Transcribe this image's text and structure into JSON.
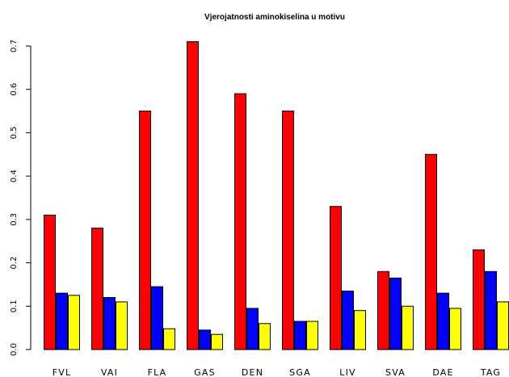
{
  "chart_data": {
    "type": "bar",
    "title": "Vjerojatnosti aminokiselina u motivu",
    "xlabel": "",
    "ylabel": "",
    "ylim": [
      0,
      0.7
    ],
    "yticks": [
      "0.0",
      "0.1",
      "0.2",
      "0.3",
      "0.4",
      "0.5",
      "0.6",
      "0.7"
    ],
    "grid": false,
    "categories": [
      "FVL",
      "VAI",
      "FLA",
      "GAS",
      "DEN",
      "SGA",
      "LIV",
      "SVA",
      "DAE",
      "TAG"
    ],
    "series": [
      {
        "color": "#ff0000",
        "values": [
          0.31,
          0.28,
          0.55,
          0.71,
          0.59,
          0.55,
          0.33,
          0.18,
          0.45,
          0.23
        ]
      },
      {
        "color": "#0000ff",
        "values": [
          0.13,
          0.12,
          0.145,
          0.045,
          0.095,
          0.065,
          0.135,
          0.165,
          0.13,
          0.18
        ]
      },
      {
        "color": "#ffff00",
        "values": [
          0.125,
          0.11,
          0.048,
          0.035,
          0.06,
          0.065,
          0.09,
          0.1,
          0.095,
          0.11
        ]
      }
    ]
  }
}
